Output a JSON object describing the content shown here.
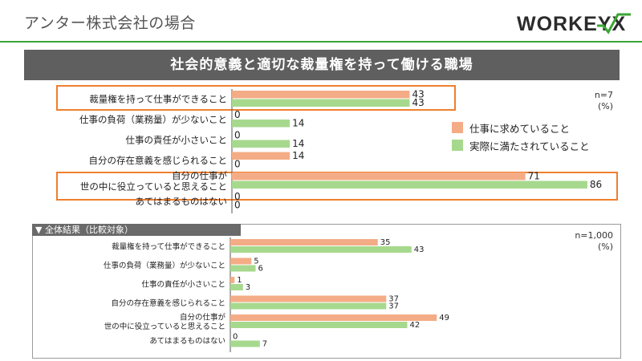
{
  "page": {
    "title": "アンター株式会社の場合",
    "banner": "社会的意義と適切な裁量権を持って働ける職場",
    "logo_text": "WORKEYX"
  },
  "colors": {
    "series1": "#f4ac86",
    "series2": "#a6d98d",
    "highlight": "#ef7f2d",
    "accent": "#3aa535",
    "banner_bg": "#5f5f5f"
  },
  "legend": {
    "series1": "仕事に求めていること",
    "series2": "実際に満たされていること"
  },
  "top_note": {
    "n": "n=7",
    "unit": "(%)"
  },
  "bottom_panel": {
    "header": "▼ 全体結果（比較対象）",
    "n": "n=1,000",
    "unit": "(%)"
  },
  "chart_data": [
    {
      "type": "bar",
      "orientation": "horizontal",
      "categories": [
        "裁量権を持って仕事ができること",
        "仕事の負荷（業務量）が少ないこと",
        "仕事の責任が小さいこと",
        "自分の存在意義を感じられること",
        "自分の仕事が\n世の中に役立っていると思えること",
        "あてはまるものはない"
      ],
      "series": [
        {
          "name": "仕事に求めていること",
          "values": [
            43,
            0,
            0,
            14,
            71,
            0
          ]
        },
        {
          "name": "実際に満たされていること",
          "values": [
            43,
            14,
            14,
            0,
            86,
            0
          ]
        }
      ],
      "xlim": [
        0,
        100
      ],
      "highlighted_categories": [
        0,
        4
      ]
    },
    {
      "type": "bar",
      "orientation": "horizontal",
      "categories": [
        "裁量権を持って仕事ができること",
        "仕事の負荷（業務量）が少ないこと",
        "仕事の責任が小さいこと",
        "自分の存在意義を感じられること",
        "自分の仕事が\n世の中に役立っていると思えること",
        "あてはまるものはない"
      ],
      "series": [
        {
          "name": "仕事に求めていること",
          "values": [
            35,
            5,
            1,
            37,
            49,
            0
          ]
        },
        {
          "name": "実際に満たされていること",
          "values": [
            43,
            6,
            3,
            37,
            42,
            7
          ]
        }
      ],
      "xlim": [
        0,
        100
      ]
    }
  ]
}
